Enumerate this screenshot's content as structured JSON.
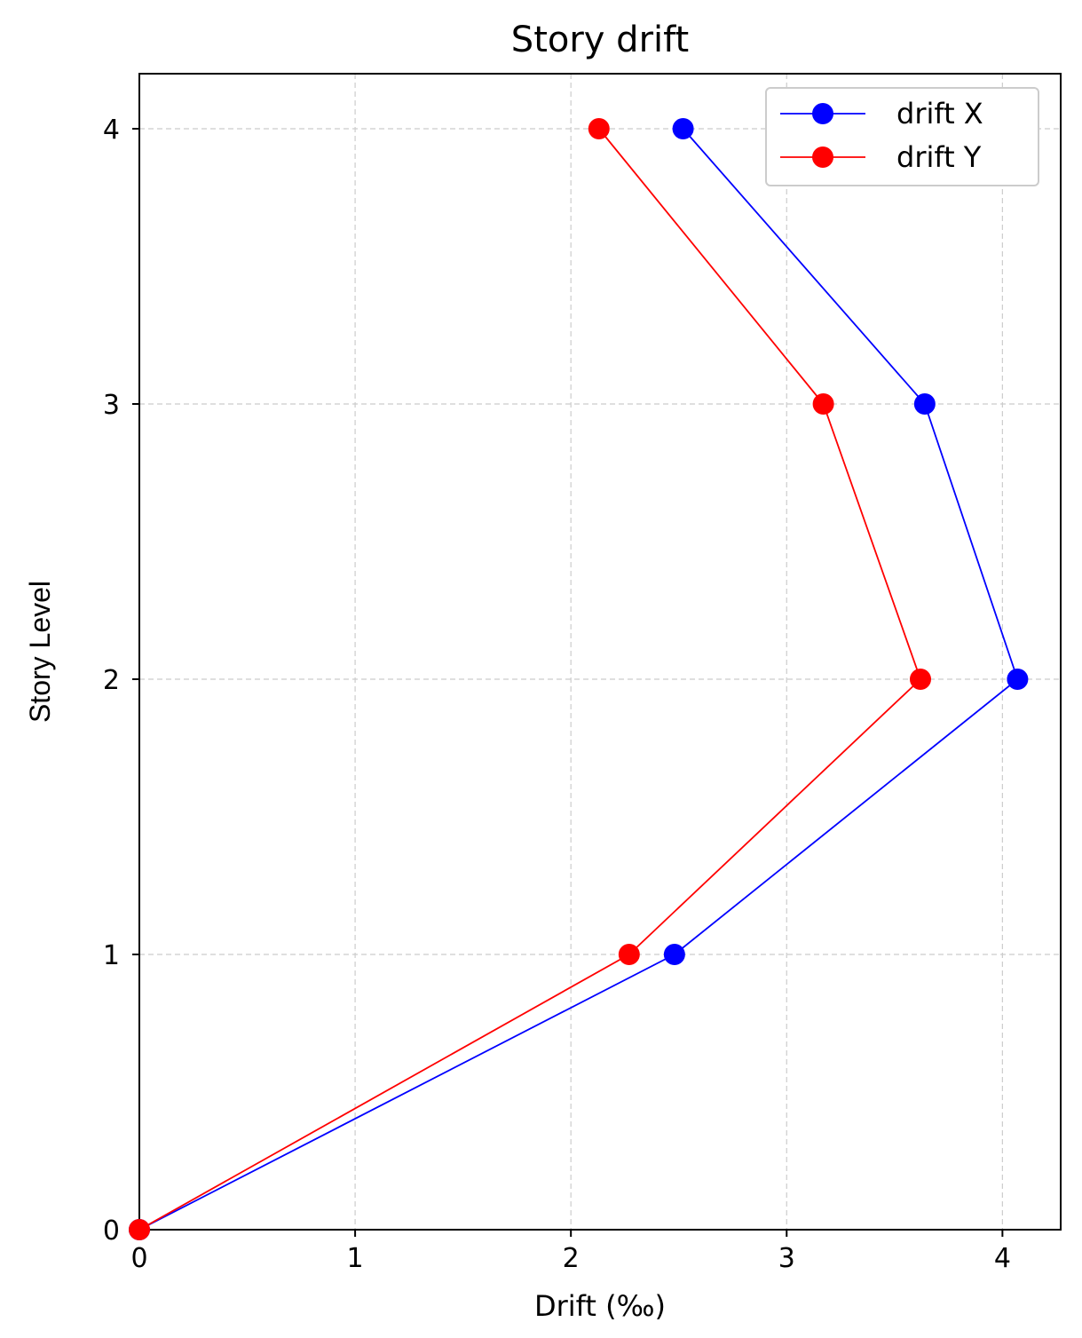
{
  "chart_data": {
    "type": "line",
    "title": "Story drift",
    "xlabel": "Drift (‰)",
    "ylabel": "Story Level",
    "xlim": [
      0,
      4.27
    ],
    "ylim": [
      0,
      4.2
    ],
    "xticks": [
      0,
      1,
      2,
      3,
      4
    ],
    "yticks": [
      0,
      1,
      2,
      3,
      4
    ],
    "grid": true,
    "legend_position": "top-right",
    "series": [
      {
        "name": "drift X",
        "color": "#0000ff",
        "marker": "circle",
        "x": [
          0,
          2.48,
          4.07,
          3.64,
          2.52
        ],
        "y": [
          0,
          1,
          2,
          3,
          4
        ]
      },
      {
        "name": "drift Y",
        "color": "#ff0000",
        "marker": "circle",
        "x": [
          0,
          2.27,
          3.62,
          3.17,
          2.13
        ],
        "y": [
          0,
          1,
          2,
          3,
          4
        ]
      }
    ]
  }
}
